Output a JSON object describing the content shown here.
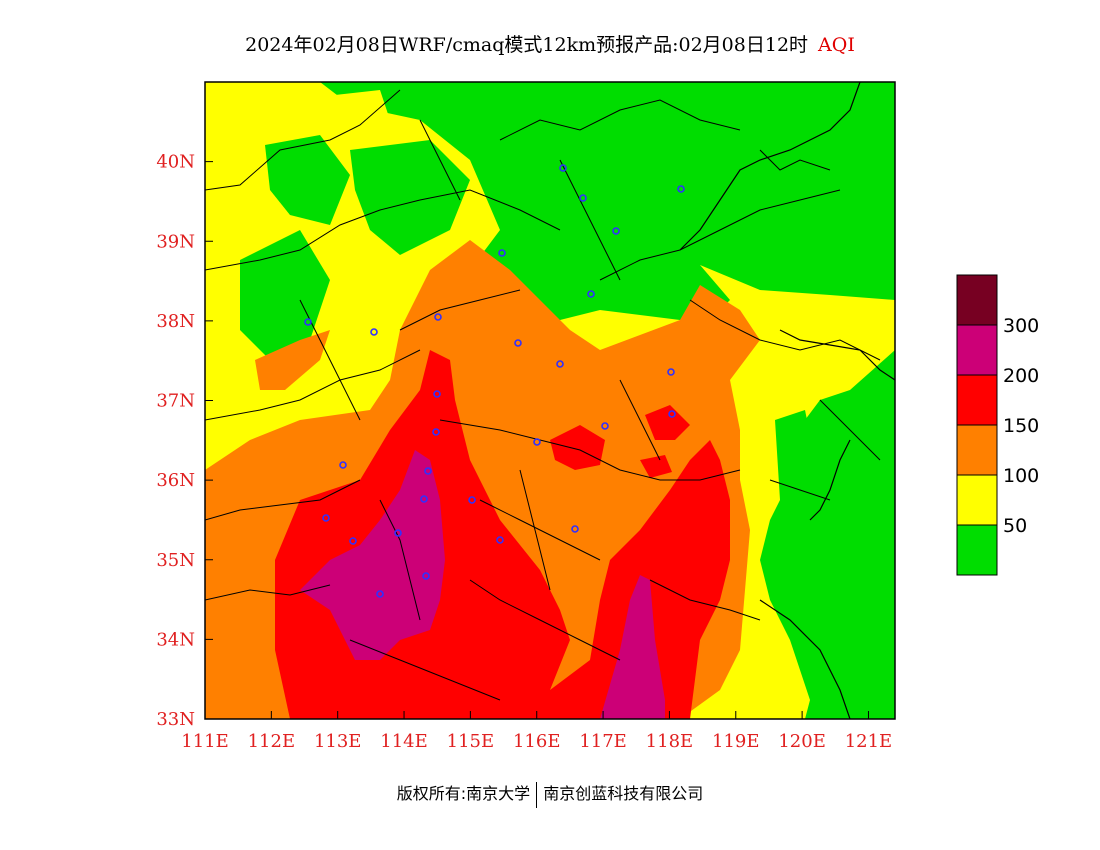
{
  "title": {
    "main": "2024年02月08日WRF/cmaq模式12km预报产品:02月08日12时",
    "variable": "AQI"
  },
  "map": {
    "lon_range": [
      111,
      121.4
    ],
    "lat_range": [
      33,
      41
    ],
    "lat_ticks": [
      "33N",
      "34N",
      "35N",
      "36N",
      "37N",
      "38N",
      "39N",
      "40N"
    ],
    "lon_ticks": [
      "111E",
      "112E",
      "113E",
      "114E",
      "115E",
      "116E",
      "117E",
      "118E",
      "119E",
      "120E",
      "121E"
    ],
    "colors": {
      "level_0_50": "#00dd00",
      "level_50_100": "#ffff00",
      "level_100_150": "#ff8000",
      "level_150_200": "#ff0000",
      "level_200_300": "#cc0077",
      "level_300_plus": "#770022",
      "station_marker": "#3030ff",
      "tick_label": "#e02020"
    }
  },
  "legend": {
    "labels": [
      "50",
      "100",
      "150",
      "200",
      "300"
    ]
  },
  "footer": {
    "copyright": "版权所有:南京大学",
    "company": "南京创蓝科技有限公司"
  }
}
